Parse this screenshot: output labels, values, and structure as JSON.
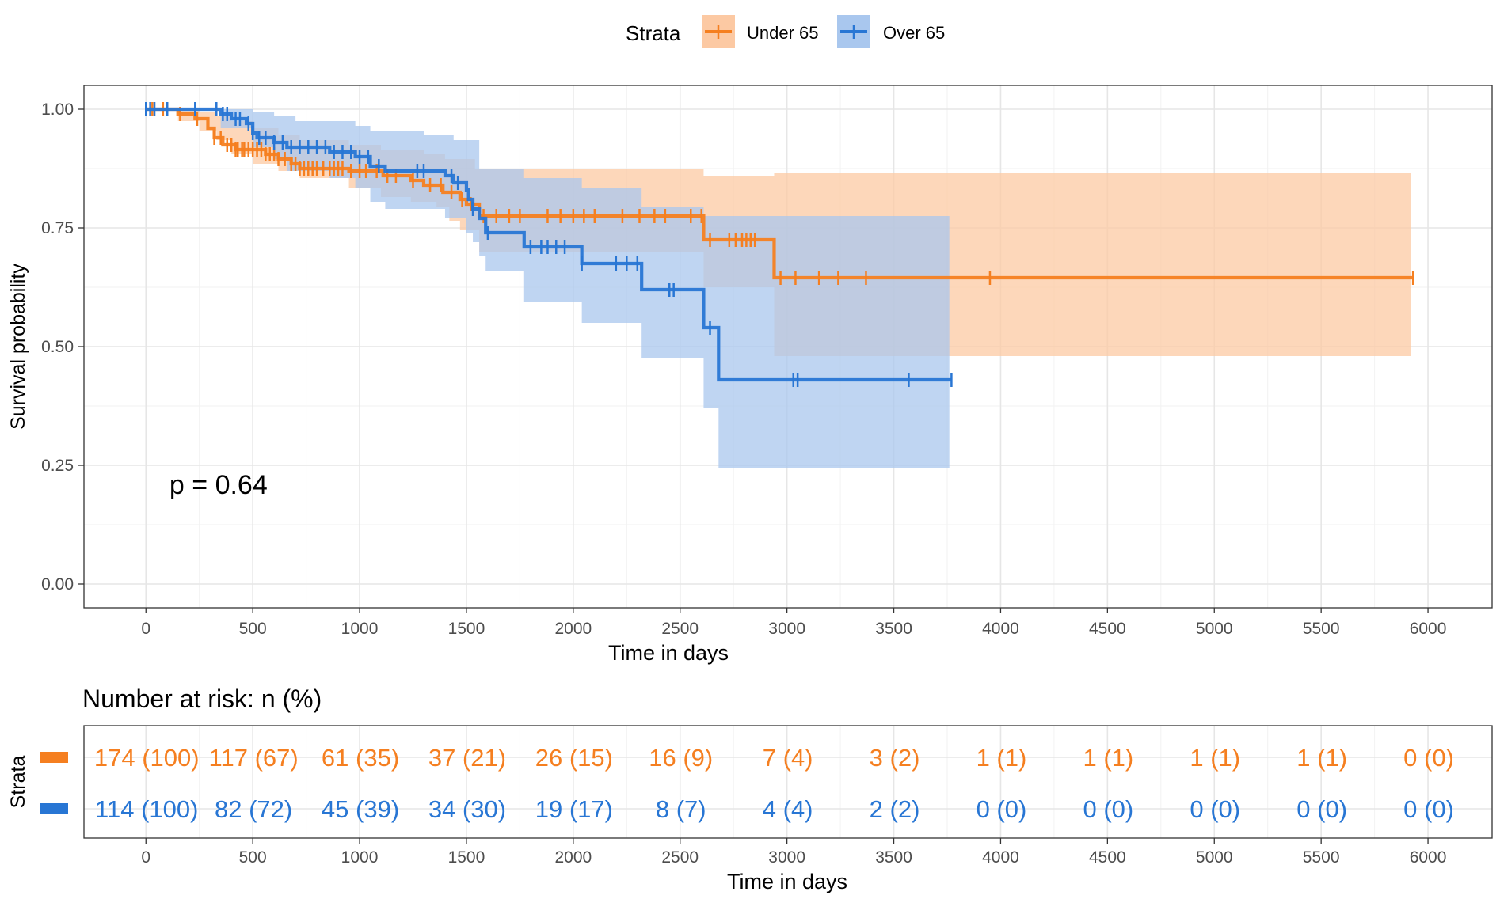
{
  "colors": {
    "under65": "#F57F20",
    "over65": "#2876D4",
    "under65_ci": "#FCC9A3",
    "over65_ci": "#A9C7EE",
    "grid_major": "#E6E6E6",
    "grid_minor": "#F2F2F2",
    "axis_text": "#4D4D4D",
    "text": "#000000",
    "panel_border": "#333333"
  },
  "legend": {
    "title": "Strata",
    "entries": [
      {
        "label": "Under 65",
        "color": "#F57F20"
      },
      {
        "label": "Over 65",
        "color": "#2876D4"
      }
    ]
  },
  "pvalue": {
    "text": "p = 0.64",
    "x_days": 110,
    "y_prob": 0.19
  },
  "risk_table": {
    "title": "Number at risk: n (%)",
    "ylabel": "Strata",
    "xlabel": "Time in days",
    "times": [
      0,
      500,
      1000,
      1500,
      2000,
      2500,
      3000,
      3500,
      4000,
      4500,
      5000,
      5500,
      6000
    ],
    "rows": [
      {
        "name": "Under 65",
        "values": [
          "174 (100)",
          "117 (67)",
          "61 (35)",
          "37 (21)",
          "26 (15)",
          "16 (9)",
          "7 (4)",
          "3 (2)",
          "1 (1)",
          "1 (1)",
          "1 (1)",
          "1 (1)",
          "0 (0)"
        ]
      },
      {
        "name": "Over 65",
        "values": [
          "114 (100)",
          "82 (72)",
          "45 (39)",
          "34 (30)",
          "19 (17)",
          "8 (7)",
          "4 (4)",
          "2 (2)",
          "0 (0)",
          "0 (0)",
          "0 (0)",
          "0 (0)",
          "0 (0)"
        ]
      }
    ]
  },
  "chart_data": {
    "type": "line",
    "subtype": "kaplan-meier",
    "title": "",
    "xlabel": "Time in days",
    "ylabel": "Survival probability",
    "xlim": [
      -290,
      6300
    ],
    "ylim": [
      -0.05,
      1.05
    ],
    "xticks": [
      0,
      500,
      1000,
      1500,
      2000,
      2500,
      3000,
      3500,
      4000,
      4500,
      5000,
      5500,
      6000
    ],
    "yticks": [
      0,
      0.25,
      0.5,
      0.75,
      1.0
    ],
    "ytick_labels": [
      "0.00",
      "0.25",
      "0.50",
      "0.75",
      "1.00"
    ],
    "grid": true,
    "legend_position": "top",
    "series": [
      {
        "name": "Under 65",
        "color": "#F57F20",
        "steps": [
          [
            0,
            1.0
          ],
          [
            150,
            0.99
          ],
          [
            230,
            0.98
          ],
          [
            290,
            0.96
          ],
          [
            320,
            0.94
          ],
          [
            360,
            0.925
          ],
          [
            420,
            0.915
          ],
          [
            560,
            0.905
          ],
          [
            620,
            0.895
          ],
          [
            680,
            0.885
          ],
          [
            720,
            0.875
          ],
          [
            950,
            0.87
          ],
          [
            1110,
            0.86
          ],
          [
            1240,
            0.85
          ],
          [
            1300,
            0.84
          ],
          [
            1390,
            0.825
          ],
          [
            1470,
            0.81
          ],
          [
            1500,
            0.8
          ],
          [
            1560,
            0.775
          ],
          [
            2610,
            0.725
          ],
          [
            2940,
            0.645
          ],
          [
            5930,
            0.645
          ]
        ],
        "ci_upper": [
          [
            0,
            1.0
          ],
          [
            150,
            1.0
          ],
          [
            250,
            0.995
          ],
          [
            330,
            0.985
          ],
          [
            400,
            0.975
          ],
          [
            500,
            0.96
          ],
          [
            620,
            0.945
          ],
          [
            720,
            0.935
          ],
          [
            950,
            0.925
          ],
          [
            1100,
            0.915
          ],
          [
            1300,
            0.905
          ],
          [
            1400,
            0.895
          ],
          [
            1540,
            0.875
          ],
          [
            1560,
            0.875
          ],
          [
            2610,
            0.86
          ],
          [
            2940,
            0.865
          ],
          [
            5920,
            0.865
          ]
        ],
        "ci_lower": [
          [
            0,
            1.0
          ],
          [
            150,
            0.975
          ],
          [
            250,
            0.955
          ],
          [
            330,
            0.935
          ],
          [
            400,
            0.905
          ],
          [
            500,
            0.885
          ],
          [
            620,
            0.87
          ],
          [
            720,
            0.855
          ],
          [
            950,
            0.835
          ],
          [
            1100,
            0.815
          ],
          [
            1240,
            0.805
          ],
          [
            1360,
            0.795
          ],
          [
            1420,
            0.765
          ],
          [
            1470,
            0.745
          ],
          [
            1560,
            0.7
          ],
          [
            2610,
            0.625
          ],
          [
            2940,
            0.48
          ],
          [
            5920,
            0.48
          ]
        ],
        "censor_times": [
          30,
          80,
          160,
          240,
          320,
          350,
          380,
          400,
          420,
          430,
          450,
          460,
          480,
          500,
          520,
          540,
          560,
          580,
          600,
          620,
          650,
          680,
          700,
          720,
          740,
          760,
          780,
          800,
          830,
          860,
          880,
          900,
          920,
          960,
          1000,
          1030,
          1080,
          1130,
          1170,
          1250,
          1330,
          1380,
          1430,
          1480,
          1520,
          1580,
          1640,
          1700,
          1750,
          1880,
          1940,
          2000,
          2050,
          2100,
          2230,
          2310,
          2380,
          2430,
          2550,
          2600,
          2640,
          2730,
          2760,
          2790,
          2810,
          2830,
          2850,
          2970,
          3040,
          3150,
          3240,
          3370,
          3950,
          5930
        ]
      },
      {
        "name": "Over 65",
        "color": "#2876D4",
        "steps": [
          [
            0,
            1.0
          ],
          [
            350,
            0.99
          ],
          [
            400,
            0.98
          ],
          [
            470,
            0.97
          ],
          [
            500,
            0.95
          ],
          [
            520,
            0.94
          ],
          [
            600,
            0.93
          ],
          [
            660,
            0.92
          ],
          [
            860,
            0.91
          ],
          [
            980,
            0.9
          ],
          [
            1050,
            0.88
          ],
          [
            1120,
            0.87
          ],
          [
            1400,
            0.86
          ],
          [
            1440,
            0.845
          ],
          [
            1500,
            0.83
          ],
          [
            1510,
            0.81
          ],
          [
            1530,
            0.79
          ],
          [
            1560,
            0.77
          ],
          [
            1590,
            0.74
          ],
          [
            1770,
            0.71
          ],
          [
            2040,
            0.675
          ],
          [
            2320,
            0.62
          ],
          [
            2610,
            0.54
          ],
          [
            2680,
            0.43
          ],
          [
            3770,
            0.43
          ]
        ],
        "ci_upper": [
          [
            0,
            1.0
          ],
          [
            400,
            1.0
          ],
          [
            500,
            0.995
          ],
          [
            600,
            0.985
          ],
          [
            700,
            0.975
          ],
          [
            980,
            0.965
          ],
          [
            1050,
            0.955
          ],
          [
            1300,
            0.945
          ],
          [
            1440,
            0.935
          ],
          [
            1560,
            0.875
          ],
          [
            1770,
            0.855
          ],
          [
            2040,
            0.835
          ],
          [
            2320,
            0.795
          ],
          [
            2610,
            0.775
          ],
          [
            3760,
            0.775
          ]
        ],
        "ci_lower": [
          [
            0,
            1.0
          ],
          [
            350,
            0.96
          ],
          [
            500,
            0.92
          ],
          [
            600,
            0.895
          ],
          [
            660,
            0.87
          ],
          [
            860,
            0.855
          ],
          [
            980,
            0.835
          ],
          [
            1050,
            0.805
          ],
          [
            1120,
            0.79
          ],
          [
            1400,
            0.77
          ],
          [
            1500,
            0.74
          ],
          [
            1530,
            0.72
          ],
          [
            1560,
            0.69
          ],
          [
            1590,
            0.66
          ],
          [
            1770,
            0.595
          ],
          [
            2040,
            0.55
          ],
          [
            2320,
            0.475
          ],
          [
            2610,
            0.37
          ],
          [
            2680,
            0.245
          ],
          [
            3760,
            0.245
          ]
        ],
        "censor_times": [
          0,
          20,
          40,
          100,
          230,
          330,
          360,
          380,
          420,
          440,
          480,
          500,
          530,
          560,
          600,
          640,
          680,
          720,
          760,
          800,
          840,
          880,
          920,
          960,
          1000,
          1040,
          1090,
          1270,
          1300,
          1430,
          1460,
          1530,
          1600,
          1800,
          1850,
          1880,
          1920,
          1960,
          2040,
          2200,
          2250,
          2300,
          2450,
          2470,
          2640,
          3030,
          3050,
          3570,
          3770
        ]
      }
    ]
  }
}
